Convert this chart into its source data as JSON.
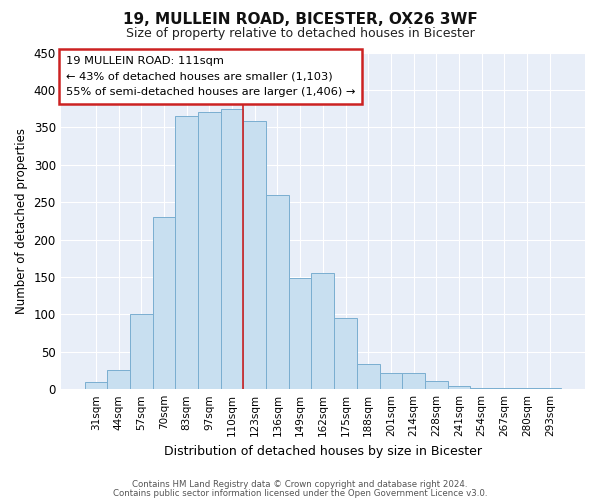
{
  "title": "19, MULLEIN ROAD, BICESTER, OX26 3WF",
  "subtitle": "Size of property relative to detached houses in Bicester",
  "xlabel": "Distribution of detached houses by size in Bicester",
  "ylabel": "Number of detached properties",
  "categories": [
    "31sqm",
    "44sqm",
    "57sqm",
    "70sqm",
    "83sqm",
    "97sqm",
    "110sqm",
    "123sqm",
    "136sqm",
    "149sqm",
    "162sqm",
    "175sqm",
    "188sqm",
    "201sqm",
    "214sqm",
    "228sqm",
    "241sqm",
    "254sqm",
    "267sqm",
    "280sqm",
    "293sqm"
  ],
  "values": [
    10,
    25,
    100,
    230,
    365,
    370,
    375,
    358,
    260,
    148,
    155,
    95,
    34,
    22,
    22,
    11,
    4,
    1,
    1,
    1,
    1
  ],
  "bar_color": "#c8dff0",
  "bar_edge_color": "#7aaed0",
  "highlight_index": 6,
  "red_line_color": "#cc2222",
  "annotation_box_edge_color": "#cc2222",
  "annotation_line1": "19 MULLEIN ROAD: 111sqm",
  "annotation_line2": "← 43% of detached houses are smaller (1,103)",
  "annotation_line3": "55% of semi-detached houses are larger (1,406) →",
  "ylim": [
    0,
    450
  ],
  "yticks": [
    0,
    50,
    100,
    150,
    200,
    250,
    300,
    350,
    400,
    450
  ],
  "footer1": "Contains HM Land Registry data © Crown copyright and database right 2024.",
  "footer2": "Contains public sector information licensed under the Open Government Licence v3.0.",
  "bg_color": "#ffffff",
  "plot_bg_color": "#e8eef8"
}
